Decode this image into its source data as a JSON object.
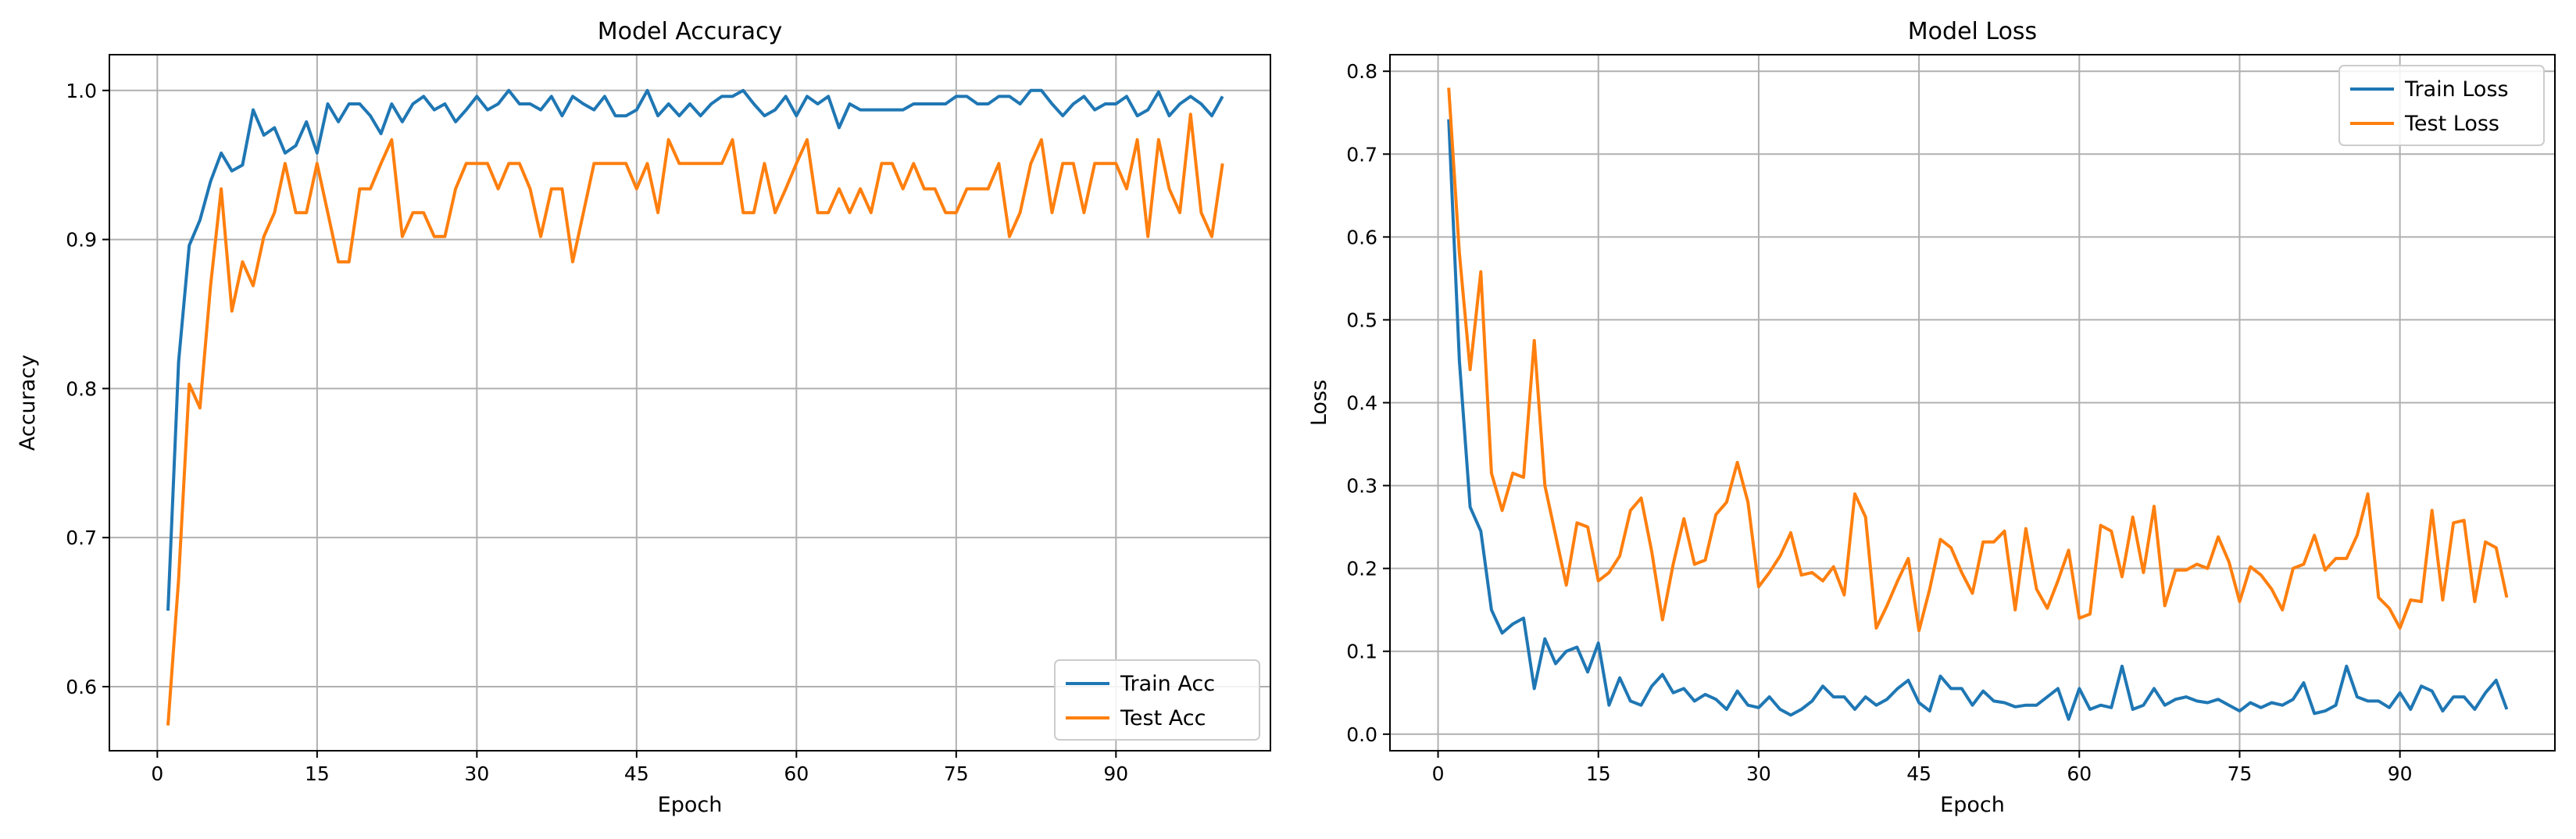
{
  "chart_data": [
    {
      "type": "line",
      "title": "Model Accuracy",
      "xlabel": "Epoch",
      "ylabel": "Accuracy",
      "xlim": [
        -4.5,
        104.5
      ],
      "ylim": [
        0.557,
        1.024
      ],
      "xticks": [
        0,
        15,
        30,
        45,
        60,
        75,
        90
      ],
      "yticks": [
        0.6,
        0.7,
        0.8,
        0.9,
        1.0
      ],
      "xtick_labels": [
        "0",
        "15",
        "30",
        "45",
        "60",
        "75",
        "90"
      ],
      "ytick_labels": [
        "0.6",
        "0.7",
        "0.8",
        "0.9",
        "1.0"
      ],
      "grid": true,
      "legend": "lower-right",
      "x": [
        1,
        2,
        3,
        4,
        5,
        6,
        7,
        8,
        9,
        10,
        11,
        12,
        13,
        14,
        15,
        16,
        17,
        18,
        19,
        20,
        21,
        22,
        23,
        24,
        25,
        26,
        27,
        28,
        29,
        30,
        31,
        32,
        33,
        34,
        35,
        36,
        37,
        38,
        39,
        40,
        41,
        42,
        43,
        44,
        45,
        46,
        47,
        48,
        49,
        50,
        51,
        52,
        53,
        54,
        55,
        56,
        57,
        58,
        59,
        60,
        61,
        62,
        63,
        64,
        65,
        66,
        67,
        68,
        69,
        70,
        71,
        72,
        73,
        74,
        75,
        76,
        77,
        78,
        79,
        80,
        81,
        82,
        83,
        84,
        85,
        86,
        87,
        88,
        89,
        90,
        91,
        92,
        93,
        94,
        95,
        96,
        97,
        98,
        99,
        100
      ],
      "series": [
        {
          "name": "Train Acc",
          "color": "#1f77b4",
          "values": [
            0.651,
            0.818,
            0.896,
            0.913,
            0.939,
            0.958,
            0.946,
            0.95,
            0.987,
            0.97,
            0.975,
            0.958,
            0.963,
            0.979,
            0.958,
            0.991,
            0.979,
            0.991,
            0.991,
            0.983,
            0.971,
            0.991,
            0.979,
            0.991,
            0.996,
            0.987,
            0.991,
            0.979,
            0.987,
            0.996,
            0.987,
            0.991,
            1.0,
            0.991,
            0.991,
            0.987,
            0.996,
            0.983,
            0.996,
            0.991,
            0.987,
            0.996,
            0.983,
            0.983,
            0.987,
            1.0,
            0.983,
            0.991,
            0.983,
            0.991,
            0.983,
            0.991,
            0.996,
            0.996,
            1.0,
            0.991,
            0.983,
            0.987,
            0.996,
            0.983,
            0.996,
            0.991,
            0.996,
            0.975,
            0.991,
            0.987,
            0.987,
            0.987,
            0.987,
            0.987,
            0.991,
            0.991,
            0.991,
            0.991,
            0.996,
            0.996,
            0.991,
            0.991,
            0.996,
            0.996,
            0.991,
            1.0,
            1.0,
            0.991,
            0.983,
            0.991,
            0.996,
            0.987,
            0.991,
            0.991,
            0.996,
            0.983,
            0.987,
            0.999,
            0.983,
            0.991,
            0.996,
            0.991,
            0.983,
            0.996
          ]
        },
        {
          "name": "Test Acc",
          "color": "#ff7f0e",
          "values": [
            0.574,
            0.672,
            0.803,
            0.787,
            0.869,
            0.934,
            0.852,
            0.885,
            0.869,
            0.902,
            0.918,
            0.951,
            0.918,
            0.918,
            0.951,
            0.918,
            0.885,
            0.885,
            0.934,
            0.934,
            0.951,
            0.967,
            0.902,
            0.918,
            0.918,
            0.902,
            0.902,
            0.934,
            0.951,
            0.951,
            0.951,
            0.934,
            0.951,
            0.951,
            0.934,
            0.902,
            0.934,
            0.934,
            0.885,
            0.918,
            0.951,
            0.951,
            0.951,
            0.951,
            0.934,
            0.951,
            0.918,
            0.967,
            0.951,
            0.951,
            0.951,
            0.951,
            0.951,
            0.967,
            0.918,
            0.918,
            0.951,
            0.918,
            0.934,
            0.951,
            0.967,
            0.918,
            0.918,
            0.934,
            0.918,
            0.934,
            0.918,
            0.951,
            0.951,
            0.934,
            0.951,
            0.934,
            0.934,
            0.918,
            0.918,
            0.934,
            0.934,
            0.934,
            0.951,
            0.902,
            0.918,
            0.951,
            0.967,
            0.918,
            0.951,
            0.951,
            0.918,
            0.951,
            0.951,
            0.951,
            0.934,
            0.967,
            0.902,
            0.967,
            0.934,
            0.918,
            0.984,
            0.918,
            0.902,
            0.951
          ]
        }
      ]
    },
    {
      "type": "line",
      "title": "Model Loss",
      "xlabel": "Epoch",
      "ylabel": "Loss",
      "xlim": [
        -4.5,
        104.5
      ],
      "ylim": [
        -0.02,
        0.82
      ],
      "xticks": [
        0,
        15,
        30,
        45,
        60,
        75,
        90
      ],
      "yticks": [
        0.0,
        0.1,
        0.2,
        0.3,
        0.4,
        0.5,
        0.6,
        0.7,
        0.8
      ],
      "xtick_labels": [
        "0",
        "15",
        "30",
        "45",
        "60",
        "75",
        "90"
      ],
      "ytick_labels": [
        "0.0",
        "0.1",
        "0.2",
        "0.3",
        "0.4",
        "0.5",
        "0.6",
        "0.7",
        "0.8"
      ],
      "grid": true,
      "legend": "upper-right",
      "x": [
        1,
        2,
        3,
        4,
        5,
        6,
        7,
        8,
        9,
        10,
        11,
        12,
        13,
        14,
        15,
        16,
        17,
        18,
        19,
        20,
        21,
        22,
        23,
        24,
        25,
        26,
        27,
        28,
        29,
        30,
        31,
        32,
        33,
        34,
        35,
        36,
        37,
        38,
        39,
        40,
        41,
        42,
        43,
        44,
        45,
        46,
        47,
        48,
        49,
        50,
        51,
        52,
        53,
        54,
        55,
        56,
        57,
        58,
        59,
        60,
        61,
        62,
        63,
        64,
        65,
        66,
        67,
        68,
        69,
        70,
        71,
        72,
        73,
        74,
        75,
        76,
        77,
        78,
        79,
        80,
        81,
        82,
        83,
        84,
        85,
        86,
        87,
        88,
        89,
        90,
        91,
        92,
        93,
        94,
        95,
        96,
        97,
        98,
        99,
        100
      ],
      "series": [
        {
          "name": "Train Loss",
          "color": "#1f77b4",
          "values": [
            0.742,
            0.45,
            0.274,
            0.245,
            0.15,
            0.122,
            0.133,
            0.14,
            0.055,
            0.115,
            0.085,
            0.1,
            0.105,
            0.075,
            0.11,
            0.035,
            0.068,
            0.04,
            0.035,
            0.058,
            0.072,
            0.05,
            0.055,
            0.04,
            0.048,
            0.042,
            0.03,
            0.052,
            0.035,
            0.032,
            0.045,
            0.03,
            0.023,
            0.03,
            0.04,
            0.058,
            0.045,
            0.045,
            0.03,
            0.045,
            0.035,
            0.042,
            0.055,
            0.065,
            0.038,
            0.028,
            0.07,
            0.055,
            0.055,
            0.035,
            0.052,
            0.04,
            0.038,
            0.033,
            0.035,
            0.035,
            0.045,
            0.055,
            0.018,
            0.055,
            0.03,
            0.035,
            0.032,
            0.082,
            0.03,
            0.035,
            0.055,
            0.035,
            0.042,
            0.045,
            0.04,
            0.038,
            0.042,
            0.035,
            0.028,
            0.038,
            0.032,
            0.038,
            0.035,
            0.042,
            0.062,
            0.025,
            0.028,
            0.035,
            0.082,
            0.045,
            0.04,
            0.04,
            0.032,
            0.05,
            0.03,
            0.058,
            0.052,
            0.028,
            0.045,
            0.045,
            0.03,
            0.05,
            0.065,
            0.03
          ]
        },
        {
          "name": "Test Loss",
          "color": "#ff7f0e",
          "values": [
            0.78,
            0.58,
            0.44,
            0.558,
            0.315,
            0.27,
            0.315,
            0.31,
            0.475,
            0.3,
            0.24,
            0.18,
            0.255,
            0.25,
            0.185,
            0.195,
            0.215,
            0.27,
            0.285,
            0.22,
            0.138,
            0.205,
            0.26,
            0.205,
            0.21,
            0.265,
            0.28,
            0.328,
            0.28,
            0.178,
            0.195,
            0.215,
            0.243,
            0.192,
            0.195,
            0.185,
            0.202,
            0.168,
            0.29,
            0.262,
            0.128,
            0.155,
            0.185,
            0.212,
            0.125,
            0.175,
            0.235,
            0.225,
            0.195,
            0.17,
            0.232,
            0.232,
            0.245,
            0.15,
            0.248,
            0.175,
            0.152,
            0.185,
            0.222,
            0.14,
            0.145,
            0.252,
            0.245,
            0.19,
            0.262,
            0.195,
            0.275,
            0.155,
            0.198,
            0.198,
            0.205,
            0.2,
            0.238,
            0.208,
            0.16,
            0.202,
            0.192,
            0.175,
            0.15,
            0.2,
            0.205,
            0.24,
            0.198,
            0.212,
            0.212,
            0.24,
            0.29,
            0.165,
            0.152,
            0.128,
            0.162,
            0.16,
            0.27,
            0.162,
            0.255,
            0.258,
            0.16,
            0.232,
            0.225,
            0.165
          ]
        }
      ]
    }
  ]
}
